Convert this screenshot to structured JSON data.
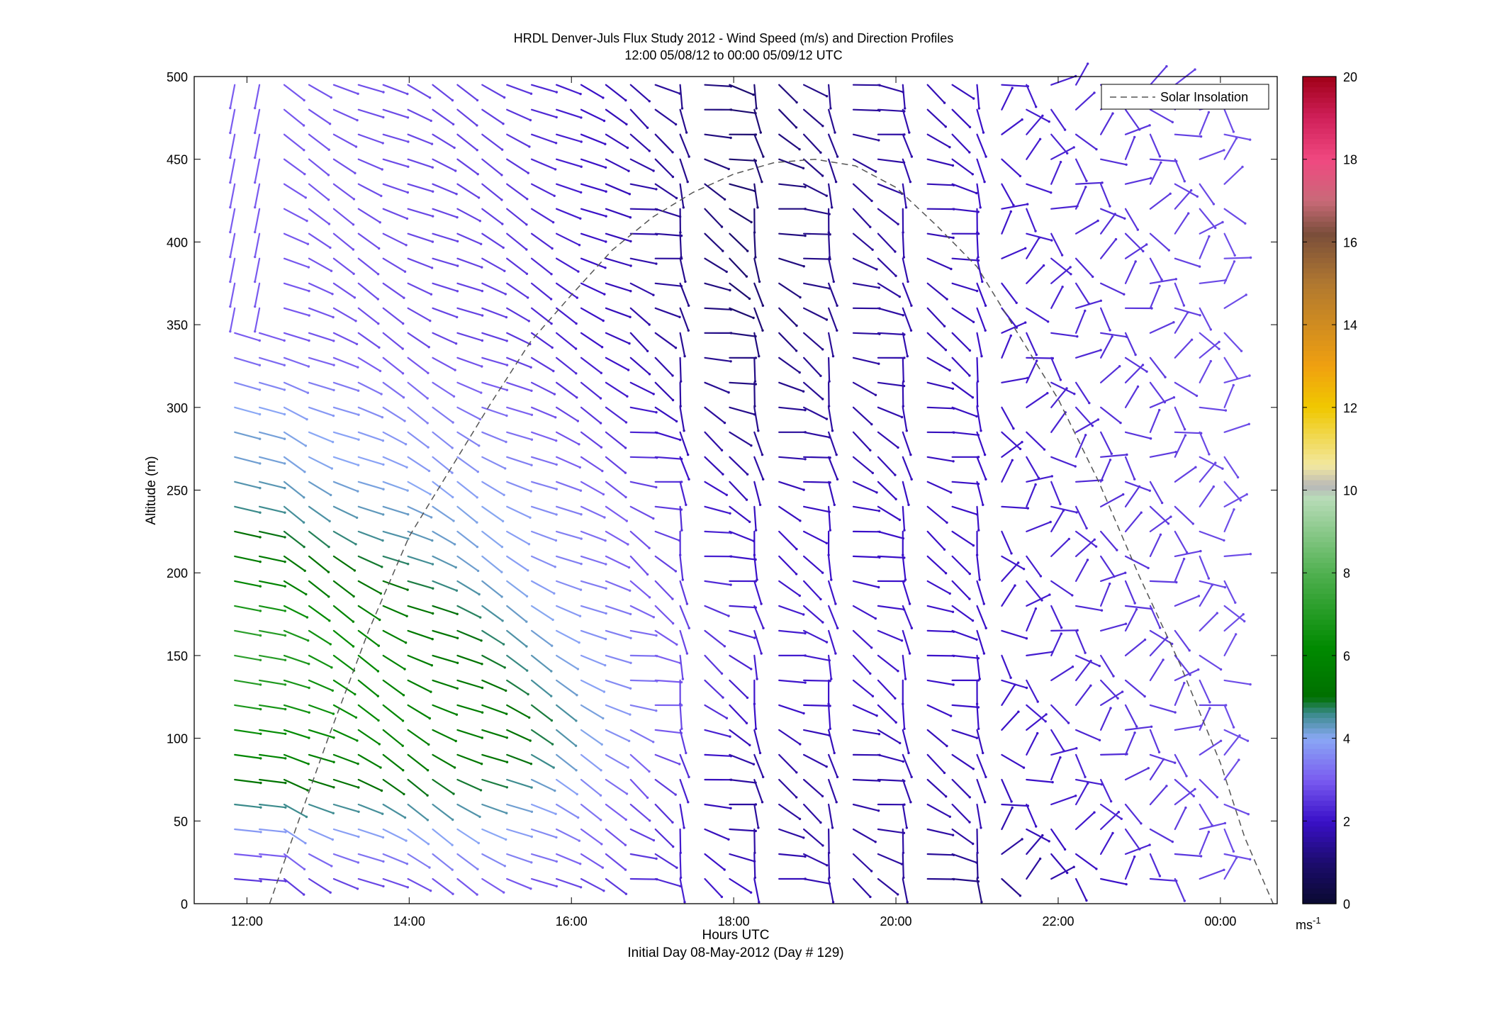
{
  "chart_data": {
    "type": "wind-barb-profile",
    "title": "HRDL Denver-Juls Flux Study 2012 - Wind Speed (m/s) and Direction Profiles",
    "subtitle": "12:00 05/08/12 to 00:00 05/09/12  UTC",
    "xlabel": "Hours UTC",
    "xlabel2": "Initial Day 08-May-2012 (Day # 129)",
    "ylabel": "Altitude (m)",
    "x_ticks": [
      "12:00",
      "14:00",
      "16:00",
      "18:00",
      "20:00",
      "22:00",
      "00:00"
    ],
    "x_tick_hours": [
      12,
      14,
      16,
      18,
      20,
      22,
      24
    ],
    "xlim_hours": [
      11.35,
      24.7
    ],
    "y_ticks": [
      "0",
      "50",
      "100",
      "150",
      "200",
      "250",
      "300",
      "350",
      "400",
      "450",
      "500"
    ],
    "ylim": [
      0,
      500
    ],
    "legend": {
      "entries": [
        "Solar Insolation"
      ],
      "placement": "top-right",
      "line_color": "#555555",
      "line_style": "dashed"
    },
    "colorbar": {
      "ticks": [
        "0",
        "2",
        "4",
        "6",
        "8",
        "10",
        "12",
        "14",
        "16",
        "18",
        "20"
      ],
      "range": [
        0,
        20
      ],
      "unit_label": "ms",
      "unit_exponent": "-1",
      "colors": [
        {
          "v": 0,
          "c": "#0a0a30"
        },
        {
          "v": 1,
          "c": "#1c0c6e"
        },
        {
          "v": 2,
          "c": "#3a10c8"
        },
        {
          "v": 3,
          "c": "#7a5cf0"
        },
        {
          "v": 4,
          "c": "#8aa8f5"
        },
        {
          "v": 4.6,
          "c": "#3a8a8a"
        },
        {
          "v": 5,
          "c": "#007000"
        },
        {
          "v": 6.2,
          "c": "#008a00"
        },
        {
          "v": 8,
          "c": "#50b050"
        },
        {
          "v": 9.8,
          "c": "#b8dcb8"
        },
        {
          "v": 10.1,
          "c": "#b8b8b8"
        },
        {
          "v": 10.6,
          "c": "#f2e8a0"
        },
        {
          "v": 12,
          "c": "#f0c800"
        },
        {
          "v": 13,
          "c": "#f0a010"
        },
        {
          "v": 15,
          "c": "#b07830"
        },
        {
          "v": 16.2,
          "c": "#7a4e3a"
        },
        {
          "v": 17,
          "c": "#c86a78"
        },
        {
          "v": 18,
          "c": "#f04880"
        },
        {
          "v": 19,
          "c": "#d0205a"
        },
        {
          "v": 20,
          "c": "#a00018"
        }
      ]
    },
    "solar_insolation_curve": {
      "hours": [
        12.28,
        12.6,
        13,
        13.5,
        14,
        14.5,
        15,
        15.5,
        16,
        16.5,
        17,
        17.5,
        18,
        18.5,
        19,
        19.5,
        20,
        20.5,
        21,
        21.5,
        22,
        22.5,
        23,
        23.5,
        24,
        24.3,
        24.65
      ],
      "altitude": [
        0,
        45,
        100,
        165,
        222,
        262,
        302,
        340,
        368,
        395,
        415,
        430,
        441,
        448,
        450,
        446,
        433,
        410,
        385,
        345,
        305,
        255,
        198,
        145,
        85,
        40,
        0
      ]
    },
    "wind_profiles": {
      "heights_m": [
        15,
        30,
        45,
        60,
        75,
        90,
        105,
        120,
        135,
        150,
        165,
        180,
        195,
        210,
        225,
        240,
        255,
        270,
        285,
        300,
        315,
        330,
        345,
        360,
        375,
        390,
        405,
        420,
        435,
        450,
        465,
        480,
        495
      ],
      "speed_m_s": [
        [
          2.5,
          3.0,
          3.8,
          4.6,
          5.2,
          6.0,
          6.4,
          6.8,
          7.0,
          7.2,
          7.2,
          6.8,
          6.0,
          5.6,
          5.0,
          4.6,
          4.4,
          4.2,
          4.2,
          4.0,
          3.6,
          3.2,
          3.0,
          3.0,
          3.0,
          3.0,
          3.0,
          3.0,
          3.0,
          3.0,
          3.0,
          3.0,
          3.0
        ],
        [
          3.0,
          3.6,
          4.0,
          4.4,
          4.8,
          5.2,
          5.4,
          5.4,
          5.0,
          4.8,
          4.6,
          4.4,
          4.2,
          4.0,
          4.0,
          4.0,
          3.8,
          3.6,
          3.4,
          3.2,
          3.0,
          2.8,
          2.6,
          2.6,
          2.6,
          2.6,
          2.6,
          2.6,
          2.6,
          2.6,
          2.6,
          2.6,
          2.6
        ],
        [
          2.0,
          1.8,
          1.6,
          1.5,
          1.5,
          1.6,
          1.8,
          2.0,
          2.1,
          2.2,
          2.2,
          2.2,
          2.1,
          2.0,
          2.0,
          1.9,
          1.8,
          1.6,
          1.4,
          1.3,
          1.2,
          1.2,
          1.1,
          1.0,
          1.0,
          1.0,
          1.0,
          1.0,
          1.0,
          1.0,
          1.0,
          1.0,
          1.0
        ],
        [
          1.2,
          1.4,
          1.6,
          1.8,
          1.8,
          1.9,
          1.9,
          2.0,
          2.0,
          2.0,
          2.0,
          2.0,
          2.0,
          2.0,
          2.0,
          2.0,
          2.0,
          2.0,
          2.0,
          2.0,
          2.0,
          2.0,
          2.0,
          2.0,
          2.0,
          2.0,
          2.0,
          2.0,
          2.0,
          2.0,
          2.0,
          2.0,
          2.0
        ],
        [
          2.8,
          2.8,
          2.8,
          2.8,
          2.8,
          2.8,
          2.8,
          2.8,
          2.8,
          2.8,
          2.8,
          2.8,
          2.8,
          2.8,
          2.8,
          2.8,
          2.8,
          2.8,
          2.8,
          2.8,
          2.8,
          2.8,
          2.8,
          2.8,
          2.8,
          2.8,
          2.8,
          2.8,
          2.8,
          2.8,
          2.8,
          2.8,
          2.8
        ]
      ]
    }
  }
}
